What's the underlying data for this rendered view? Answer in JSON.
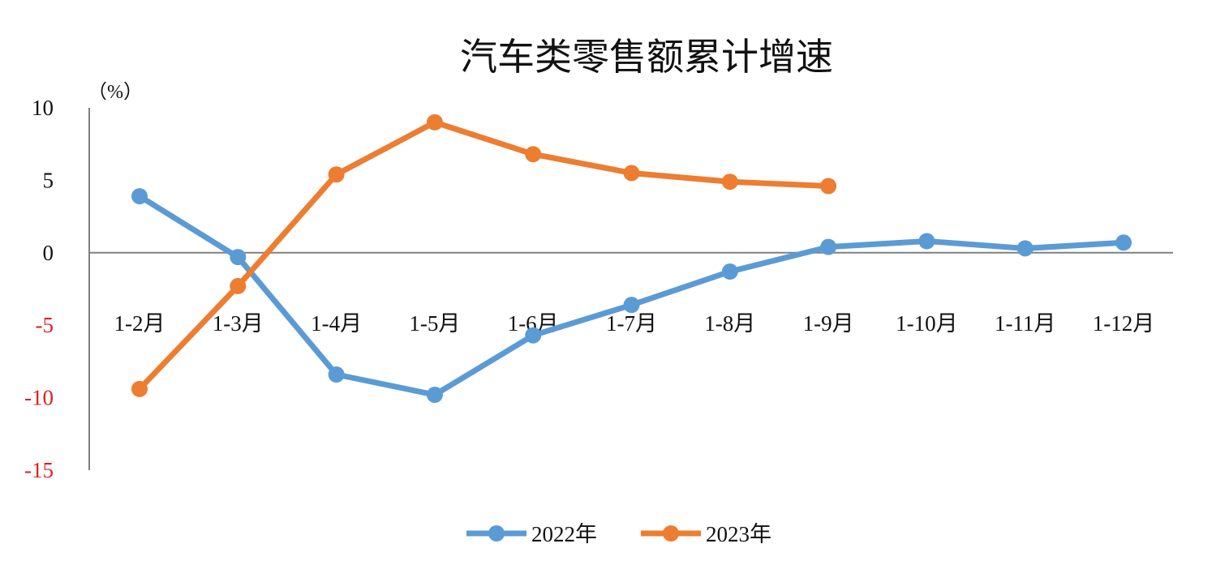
{
  "chart_data": {
    "type": "line",
    "title": "汽车类零售额累计增速",
    "unit_label": "（%）",
    "categories": [
      "1-2月",
      "1-3月",
      "1-4月",
      "1-5月",
      "1-6月",
      "1-7月",
      "1-8月",
      "1-9月",
      "1-10月",
      "1-11月",
      "1-12月"
    ],
    "ylim": [
      -15,
      10
    ],
    "yticks": [
      10,
      5,
      0,
      -5,
      -10,
      -15
    ],
    "ytick_labels": [
      "10",
      "5",
      "0",
      "-5",
      "-10",
      "-15"
    ],
    "positive_tick_color": "#111111",
    "negative_tick_color": "#e02020",
    "grid": false,
    "legend_position": "bottom",
    "series": [
      {
        "name": "2022年",
        "color": "#5b9bd5",
        "values": [
          3.9,
          -0.3,
          -8.4,
          -9.8,
          -5.7,
          -3.6,
          -1.3,
          0.4,
          0.8,
          0.3,
          0.7
        ]
      },
      {
        "name": "2023年",
        "color": "#ed7d31",
        "values": [
          -9.4,
          -2.3,
          5.4,
          9.0,
          6.8,
          5.5,
          4.9,
          4.6,
          null,
          null,
          null
        ]
      }
    ]
  }
}
